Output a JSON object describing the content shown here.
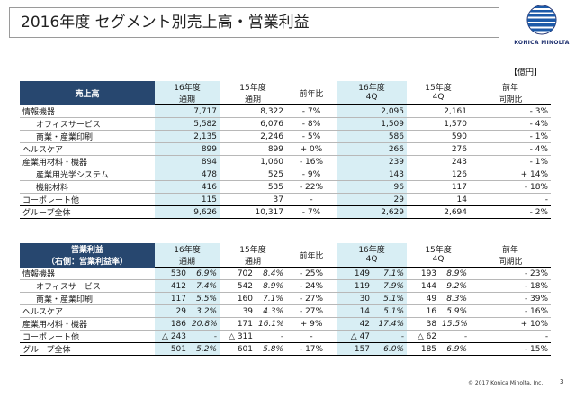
{
  "title": "2016年度 セグメント別売上高・営業利益",
  "logo": {
    "text": "KONICA MINOLTA",
    "brand_color": "#1c2e6e"
  },
  "unit": "【億円】",
  "sales": {
    "header_label": "売上高",
    "columns": [
      {
        "top": "16年度",
        "bottom": "通期"
      },
      {
        "top": "15年度",
        "bottom": "通期"
      },
      {
        "top": "",
        "bottom": "前年比"
      },
      {
        "top": "16年度",
        "bottom": "4Q"
      },
      {
        "top": "15年度",
        "bottom": "4Q"
      },
      {
        "top": "前年",
        "bottom": "同期比"
      }
    ],
    "rows": [
      {
        "label": "情報機器",
        "v": [
          "7,717",
          "8,322",
          "- 7%",
          "2,095",
          "2,161",
          "- 3%"
        ]
      },
      {
        "label": "オフィスサービス",
        "v": [
          "5,582",
          "6,076",
          "- 8%",
          "1,509",
          "1,570",
          "- 4%"
        ]
      },
      {
        "label": "商業・産業印刷",
        "v": [
          "2,135",
          "2,246",
          "- 5%",
          "586",
          "590",
          "- 1%"
        ]
      },
      {
        "label": "ヘルスケア",
        "v": [
          "899",
          "899",
          "+ 0%",
          "266",
          "276",
          "- 4%"
        ]
      },
      {
        "label": "産業用材料・機器",
        "v": [
          "894",
          "1,060",
          "- 16%",
          "239",
          "243",
          "- 1%"
        ]
      },
      {
        "label": "産業用光学システム",
        "v": [
          "478",
          "525",
          "- 9%",
          "143",
          "126",
          "+ 14%"
        ]
      },
      {
        "label": "機能材料",
        "v": [
          "416",
          "535",
          "- 22%",
          "96",
          "117",
          "- 18%"
        ]
      },
      {
        "label": "コーポレート他",
        "v": [
          "115",
          "37",
          "-",
          "29",
          "14",
          "-"
        ]
      },
      {
        "label": "グループ全体",
        "v": [
          "9,626",
          "10,317",
          "- 7%",
          "2,629",
          "2,694",
          "- 2%"
        ]
      }
    ]
  },
  "op": {
    "header_label1": "営業利益",
    "header_label2": "（右側：営業利益率）",
    "columns": [
      {
        "top": "16年度",
        "bottom": "通期"
      },
      {
        "top": "15年度",
        "bottom": "通期"
      },
      {
        "top": "",
        "bottom": "前年比"
      },
      {
        "top": "16年度",
        "bottom": "4Q"
      },
      {
        "top": "15年度",
        "bottom": "4Q"
      },
      {
        "top": "前年",
        "bottom": "同期比"
      }
    ],
    "rows": [
      {
        "label": "情報機器",
        "v": [
          "530",
          "6.9%",
          "702",
          "8.4%",
          "- 25%",
          "149",
          "7.1%",
          "193",
          "8.9%",
          "- 23%"
        ]
      },
      {
        "label": "オフィスサービス",
        "v": [
          "412",
          "7.4%",
          "542",
          "8.9%",
          "- 24%",
          "119",
          "7.9%",
          "144",
          "9.2%",
          "- 18%"
        ]
      },
      {
        "label": "商業・産業印刷",
        "v": [
          "117",
          "5.5%",
          "160",
          "7.1%",
          "- 27%",
          "30",
          "5.1%",
          "49",
          "8.3%",
          "- 39%"
        ]
      },
      {
        "label": "ヘルスケア",
        "v": [
          "29",
          "3.2%",
          "39",
          "4.3%",
          "- 27%",
          "14",
          "5.1%",
          "16",
          "5.9%",
          "- 16%"
        ]
      },
      {
        "label": "産業用材料・機器",
        "v": [
          "186",
          "20.8%",
          "171",
          "16.1%",
          "+ 9%",
          "42",
          "17.4%",
          "38",
          "15.5%",
          "+ 10%"
        ]
      },
      {
        "label": "コーポレート他",
        "v": [
          "△ 243",
          "-",
          "△ 311",
          "-",
          "-",
          "△ 47",
          "-",
          "△ 62",
          "-",
          "-"
        ]
      },
      {
        "label": "グループ全体",
        "v": [
          "501",
          "5.2%",
          "601",
          "5.8%",
          "- 17%",
          "157",
          "6.0%",
          "185",
          "6.9%",
          "- 15%"
        ]
      }
    ]
  },
  "footer": "© 2017 Konica Minolta, Inc.",
  "page_number": "3"
}
